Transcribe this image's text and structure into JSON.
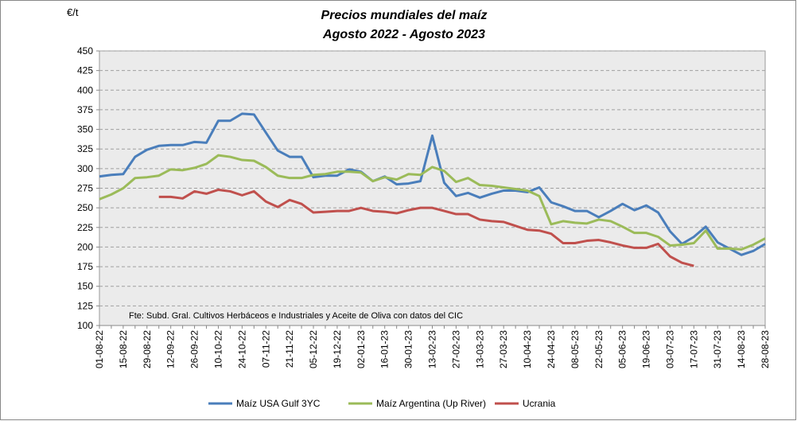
{
  "chart_data": {
    "type": "line",
    "title": "Precios mundiales del maíz",
    "subtitle": "Agosto 2022 - Agosto 2023",
    "y_label": "€/t",
    "annotation": "Fte: Subd. Gral. Cultivos Herbáceos e Industriales y Aceite de Oliva con datos del CIC",
    "categories": [
      "01-08-22",
      null,
      "15-08-22",
      null,
      "29-08-22",
      null,
      "12-09-22",
      null,
      "26-09-22",
      null,
      "10-10-22",
      null,
      "24-10-22",
      null,
      "07-11-22",
      null,
      "21-11-22",
      null,
      "05-12-22",
      null,
      "19-12-22",
      null,
      "02-01-23",
      null,
      "16-01-23",
      null,
      "30-01-23",
      null,
      "13-02-23",
      null,
      "27-02-23",
      null,
      "13-03-23",
      null,
      "27-03-23",
      null,
      "10-04-23",
      null,
      "24-04-23",
      null,
      "08-05-23",
      null,
      "22-05-23",
      null,
      "05-06-23",
      null,
      "19-06-23",
      null,
      "03-07-23",
      null,
      "17-07-23",
      null,
      "31-07-23",
      null,
      "14-08-23",
      null,
      "28-08-23"
    ],
    "series": [
      {
        "name": "Maíz USA Gulf 3YC",
        "color": "#4a7ebb",
        "values": [
          290,
          292,
          293,
          315,
          324,
          329,
          330,
          330,
          334,
          333,
          361,
          361,
          370,
          369,
          346,
          323,
          315,
          315,
          289,
          291,
          291,
          299,
          296,
          284,
          290,
          280,
          281,
          284,
          342,
          282,
          265,
          269,
          263,
          268,
          272,
          272,
          270,
          276,
          257,
          252,
          246,
          246,
          238,
          246,
          255,
          247,
          253,
          244,
          220,
          204,
          213,
          226,
          206,
          198,
          190,
          195,
          204
        ]
      },
      {
        "name": "Maíz Argentina (Up River)",
        "color": "#9bbb59",
        "values": [
          261,
          267,
          275,
          288,
          289,
          291,
          299,
          298,
          301,
          306,
          317,
          315,
          311,
          310,
          302,
          291,
          288,
          288,
          292,
          293,
          296,
          296,
          295,
          284,
          289,
          286,
          293,
          292,
          302,
          297,
          283,
          288,
          279,
          278,
          276,
          274,
          272,
          265,
          229,
          233,
          231,
          230,
          235,
          233,
          226,
          218,
          218,
          213,
          202,
          203,
          205,
          221,
          198,
          198,
          197,
          203,
          211
        ]
      },
      {
        "name": "Ucrania",
        "color": "#c0504d",
        "values": [
          null,
          null,
          null,
          null,
          null,
          264,
          264,
          262,
          271,
          268,
          273,
          271,
          266,
          271,
          258,
          251,
          260,
          255,
          244,
          245,
          246,
          246,
          250,
          246,
          245,
          243,
          247,
          250,
          250,
          246,
          242,
          242,
          235,
          233,
          232,
          227,
          222,
          221,
          217,
          205,
          205,
          208,
          209,
          206,
          202,
          199,
          199,
          204,
          188,
          180,
          176,
          null,
          null,
          null,
          null,
          null,
          null
        ]
      }
    ],
    "ylim": [
      100,
      450
    ],
    "yticks": [
      100,
      125,
      150,
      175,
      200,
      225,
      250,
      275,
      300,
      325,
      350,
      375,
      400,
      425,
      450
    ],
    "grid": true
  }
}
